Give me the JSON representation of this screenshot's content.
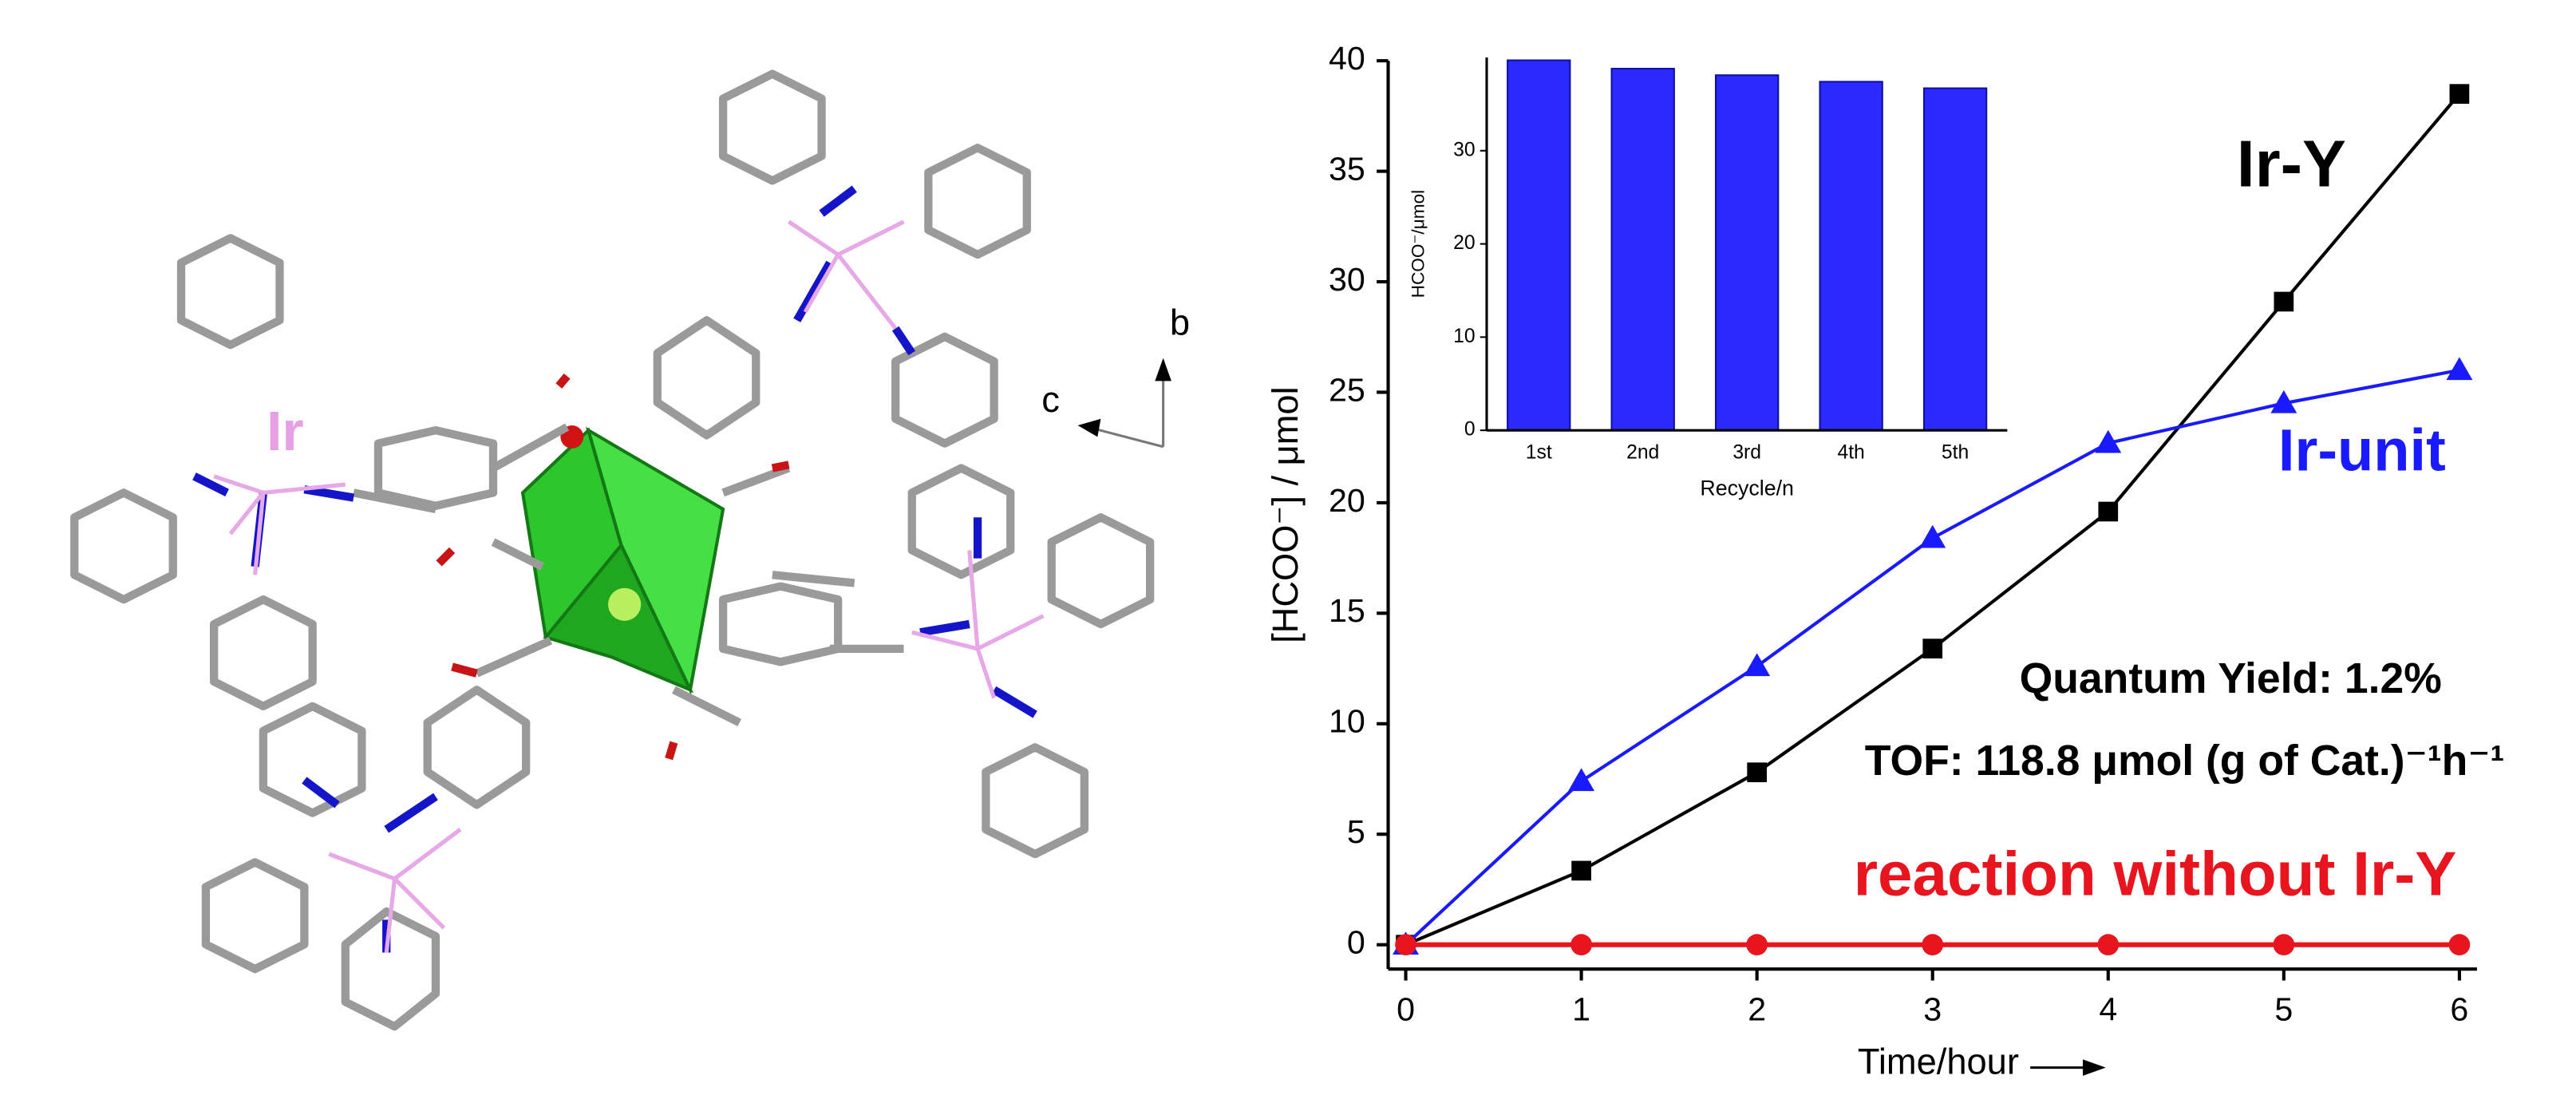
{
  "figure": {
    "atom_label": "Ir",
    "axis_labels": [
      "b",
      "c"
    ]
  },
  "chart_data": [
    {
      "type": "line",
      "x": [
        0,
        1,
        2,
        3,
        4,
        5,
        6
      ],
      "series": [
        {
          "name": "Ir-Y",
          "color": "#000000",
          "marker": "square",
          "values": [
            0,
            3.35,
            7.8,
            13.4,
            19.6,
            29.1,
            38.5
          ]
        },
        {
          "name": "Ir-unit",
          "color": "#1a1aff",
          "marker": "triangle",
          "values": [
            0,
            7.4,
            12.6,
            18.4,
            22.7,
            24.5,
            26.0
          ]
        },
        {
          "name": "reaction without Ir-Y",
          "color": "#e8141e",
          "marker": "circle",
          "values": [
            0,
            0,
            0,
            0,
            0,
            0,
            0
          ]
        }
      ],
      "xlabel": "Time/hour",
      "ylabel": "[HCOO⁻] / μmol",
      "xlim": [
        -0.1,
        6.1
      ],
      "xticks": [
        0,
        1,
        2,
        3,
        4,
        5,
        6
      ],
      "ylim": [
        -1.1,
        40
      ],
      "yticks": [
        0,
        5,
        10,
        15,
        20,
        25,
        30,
        35,
        40
      ],
      "annotations": [
        "Quantum Yield: 1.2%",
        "TOF: 118.8 μmol (g of Cat.)⁻¹h⁻¹"
      ]
    },
    {
      "type": "bar",
      "categories": [
        "1st",
        "2nd",
        "3rd",
        "4th",
        "5th"
      ],
      "values": [
        39.7,
        38.8,
        38.1,
        37.4,
        36.7
      ],
      "color": "#2a2aff",
      "xlabel": "Recycle/n",
      "ylabel": "HCOO⁻/μmol",
      "ylim": [
        0,
        40
      ],
      "yticks": [
        0,
        10,
        20,
        30
      ]
    }
  ]
}
